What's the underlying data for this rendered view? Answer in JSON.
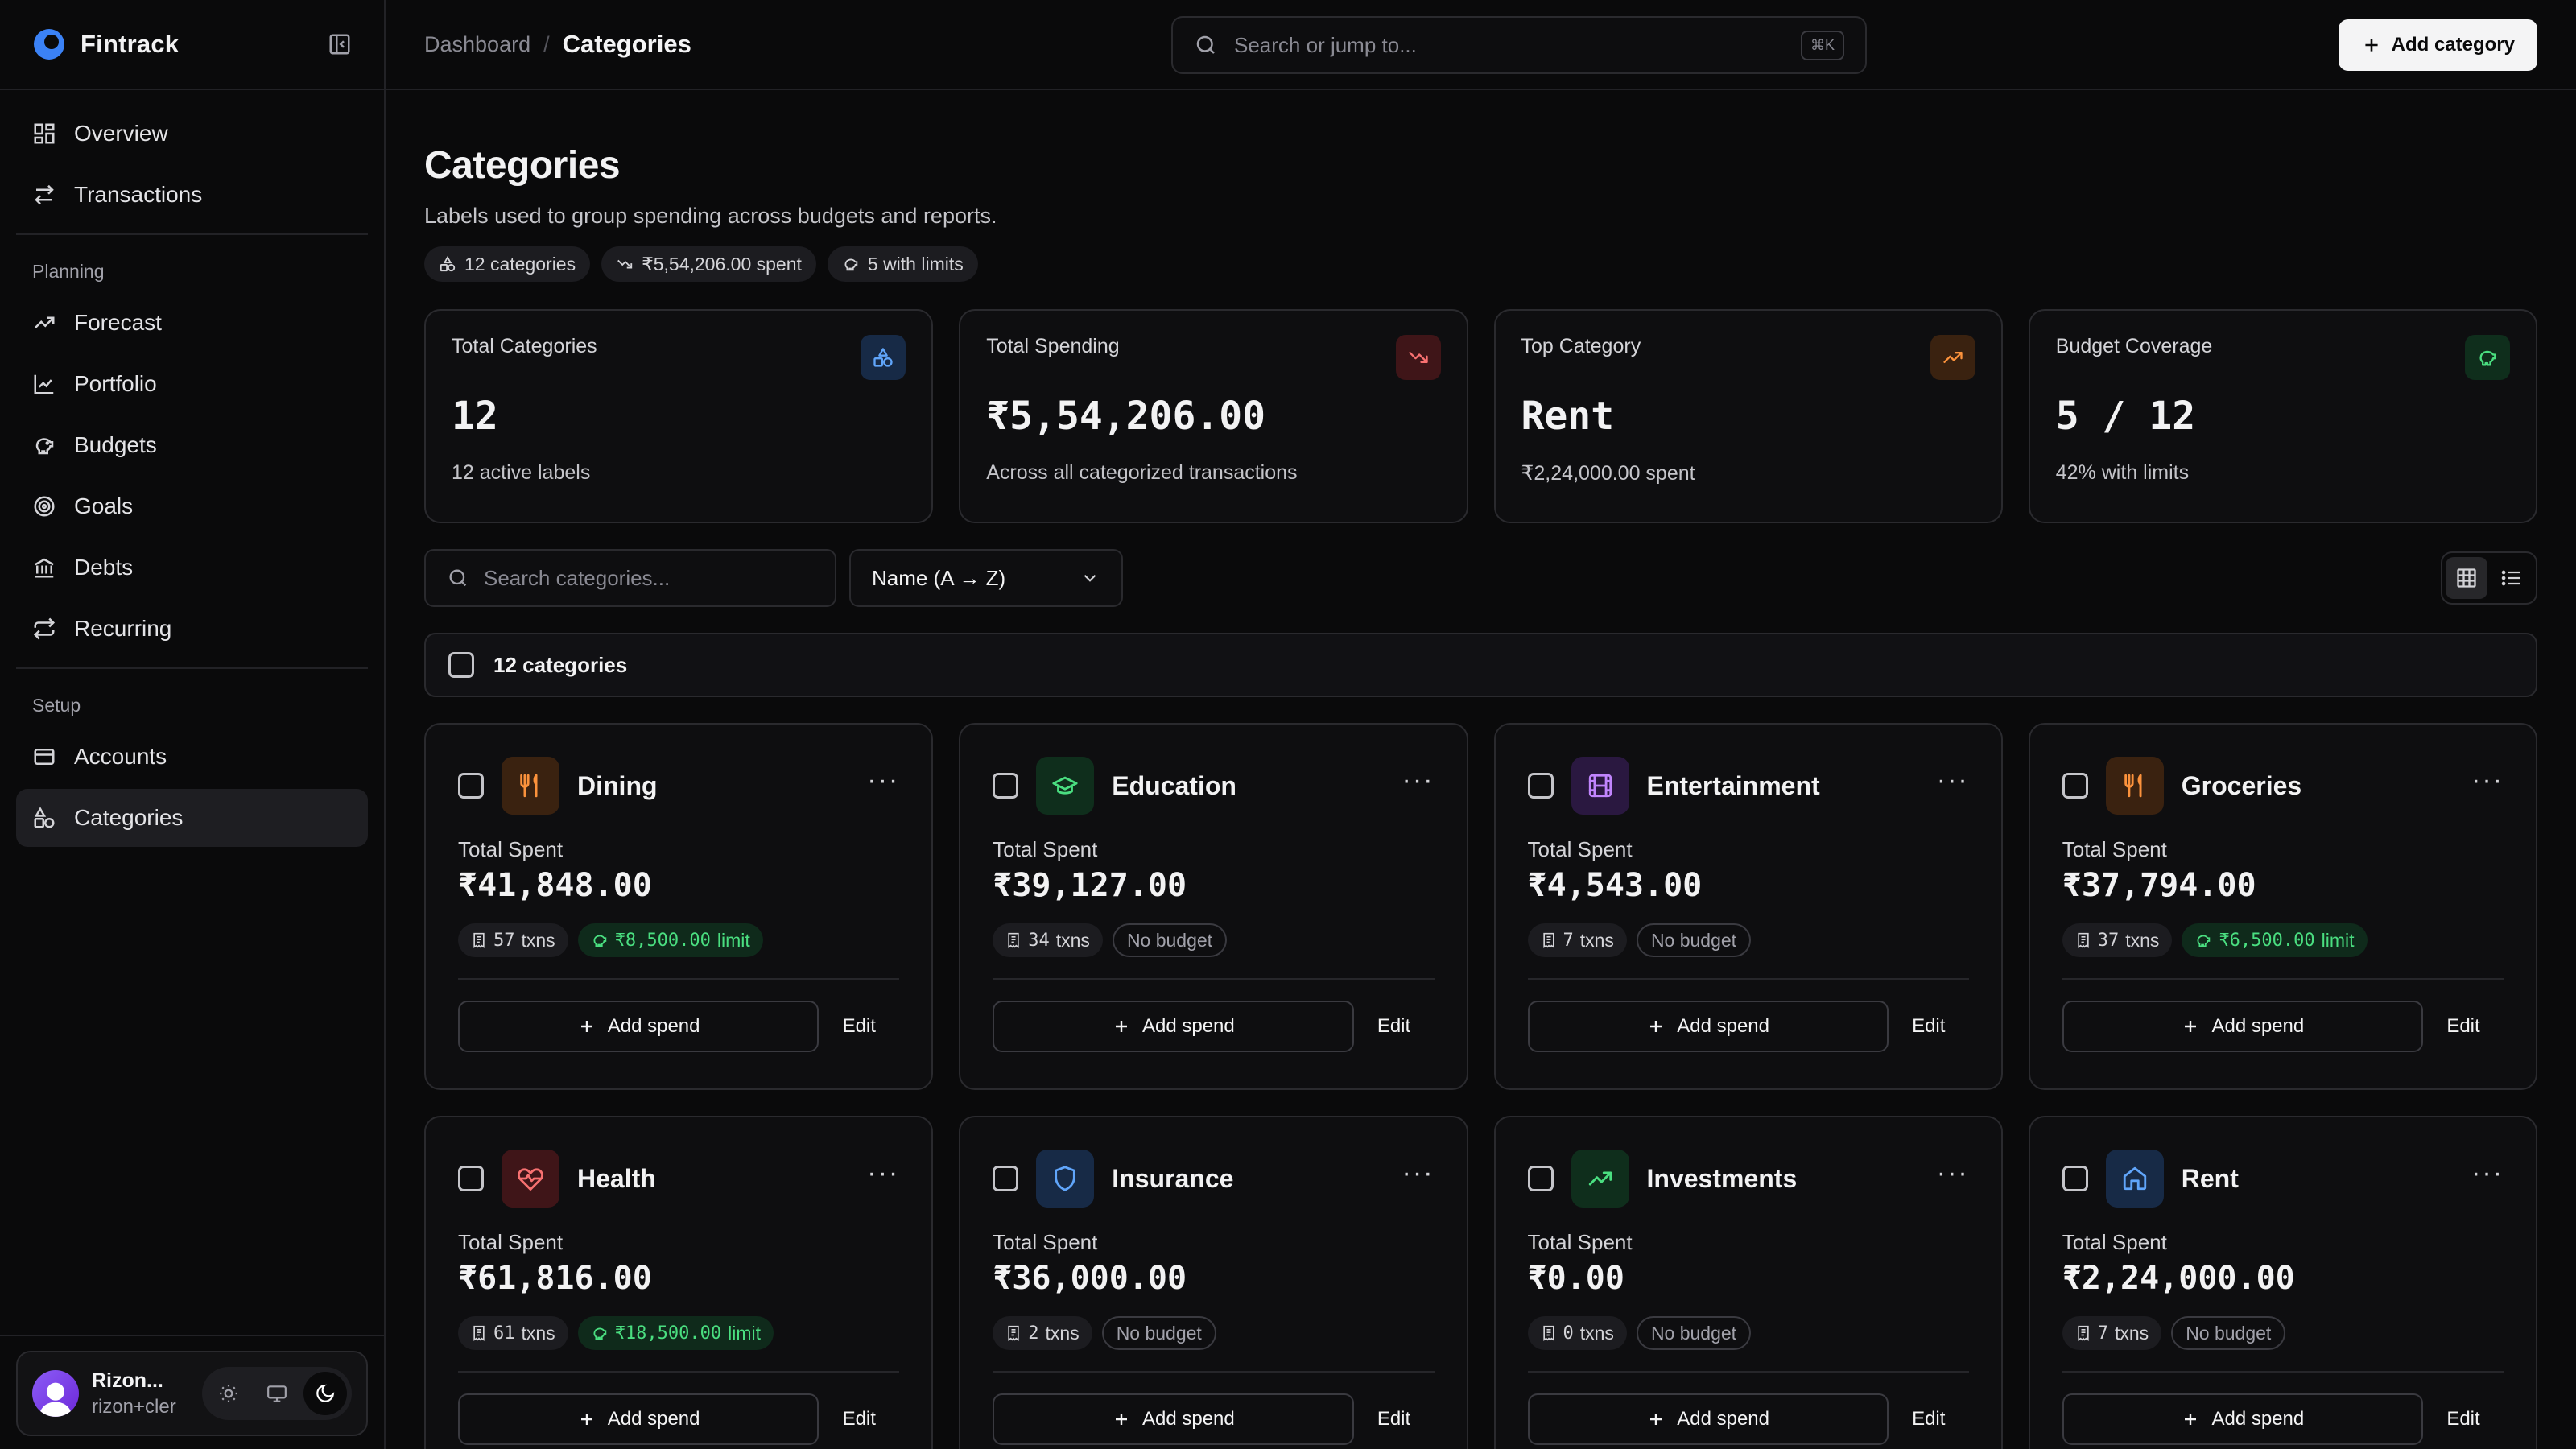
{
  "brand": {
    "name": "Fintrack"
  },
  "nav": {
    "main": [
      {
        "label": "Overview",
        "icon": "overview-icon"
      },
      {
        "label": "Transactions",
        "icon": "transactions-icon"
      }
    ],
    "planning_label": "Planning",
    "planning": [
      {
        "label": "Forecast",
        "icon": "forecast-icon"
      },
      {
        "label": "Portfolio",
        "icon": "portfolio-icon"
      },
      {
        "label": "Budgets",
        "icon": "piggy-bank-icon"
      },
      {
        "label": "Goals",
        "icon": "target-icon"
      },
      {
        "label": "Debts",
        "icon": "bank-icon"
      },
      {
        "label": "Recurring",
        "icon": "repeat-icon"
      }
    ],
    "setup_label": "Setup",
    "setup": [
      {
        "label": "Accounts",
        "icon": "wallet-icon"
      },
      {
        "label": "Categories",
        "icon": "shapes-icon",
        "active": true
      }
    ]
  },
  "user": {
    "name": "Rizon...",
    "email": "rizon+cler"
  },
  "topbar": {
    "breadcrumb_parent": "Dashboard",
    "breadcrumb_current": "Categories",
    "search_placeholder": "Search or jump to...",
    "search_shortcut": "⌘K",
    "add_button": "Add category"
  },
  "page": {
    "title": "Categories",
    "subtitle": "Labels used to group spending across budgets and reports.",
    "chips": [
      "12 categories",
      "₹5,54,206.00 spent",
      "5 with limits"
    ]
  },
  "stats": [
    {
      "label": "Total Categories",
      "value": "12",
      "sub": "12 active labels",
      "icon": "shapes-icon",
      "color": "#60a5fa",
      "bg": "#172a46"
    },
    {
      "label": "Total Spending",
      "value": "₹5,54,206.00",
      "sub": "Across all categorized transactions",
      "icon": "trending-down-icon",
      "color": "#f87171",
      "bg": "#3f1518"
    },
    {
      "label": "Top Category",
      "value": "Rent",
      "sub": "₹2,24,000.00 spent",
      "icon": "trending-up-icon",
      "color": "#fb923c",
      "bg": "#3a2210"
    },
    {
      "label": "Budget Coverage",
      "value": "5 / 12",
      "sub": "42% with limits",
      "icon": "piggy-bank-icon",
      "color": "#4ade80",
      "bg": "#0f2e1c"
    }
  ],
  "filters": {
    "search_placeholder": "Search categories...",
    "sort_value": "Name (A → Z)"
  },
  "selection": {
    "label": "12 categories"
  },
  "card_labels": {
    "total_spent": "Total Spent",
    "add_spend": "Add spend",
    "edit": "Edit",
    "no_budget": "No budget"
  },
  "categories": [
    {
      "name": "Dining",
      "spent": "₹41,848.00",
      "txns": "57",
      "limit": "₹8,500.00",
      "icon": "utensils-icon",
      "color": "#fb923c",
      "bg": "#3a2210"
    },
    {
      "name": "Education",
      "spent": "₹39,127.00",
      "txns": "34",
      "limit": null,
      "icon": "graduation-cap-icon",
      "color": "#4ade80",
      "bg": "#0f2e1c"
    },
    {
      "name": "Entertainment",
      "spent": "₹4,543.00",
      "txns": "7",
      "limit": null,
      "icon": "film-icon",
      "color": "#c084fc",
      "bg": "#2a1840"
    },
    {
      "name": "Groceries",
      "spent": "₹37,794.00",
      "txns": "37",
      "limit": "₹6,500.00",
      "icon": "utensils-icon",
      "color": "#fb923c",
      "bg": "#3a2210"
    },
    {
      "name": "Health",
      "spent": "₹61,816.00",
      "txns": "61",
      "limit": "₹18,500.00",
      "icon": "heart-pulse-icon",
      "color": "#f87171",
      "bg": "#3f1518"
    },
    {
      "name": "Insurance",
      "spent": "₹36,000.00",
      "txns": "2",
      "limit": null,
      "icon": "shield-icon",
      "color": "#60a5fa",
      "bg": "#172a46"
    },
    {
      "name": "Investments",
      "spent": "₹0.00",
      "txns": "0",
      "limit": null,
      "icon": "trending-up-icon",
      "color": "#4ade80",
      "bg": "#0f2e1c"
    },
    {
      "name": "Rent",
      "spent": "₹2,24,000.00",
      "txns": "7",
      "limit": null,
      "icon": "home-icon",
      "color": "#60a5fa",
      "bg": "#172a46"
    }
  ],
  "txn_suffix": "txns",
  "limit_suffix": "limit"
}
